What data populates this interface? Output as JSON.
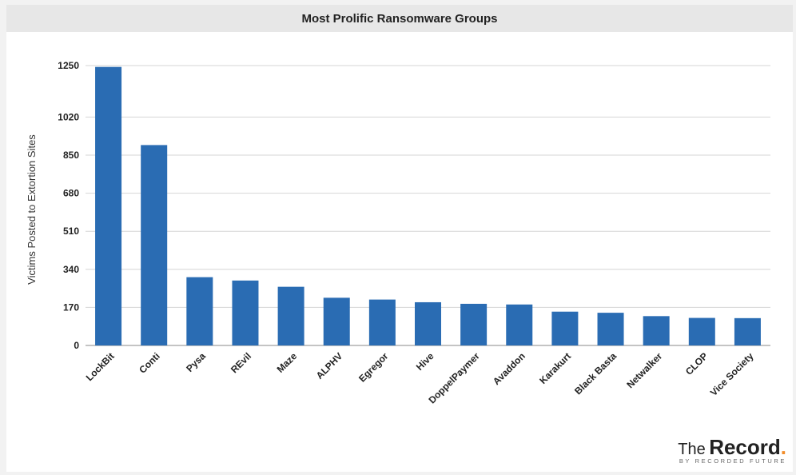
{
  "chart_data": {
    "type": "bar",
    "title": "Most Prolific Ransomware Groups",
    "xlabel": "",
    "ylabel": "Victims Posted to Extortion Sites",
    "categories": [
      "LockBit",
      "Conti",
      "Pysa",
      "REvil",
      "Maze",
      "ALPHV",
      "Egregor",
      "Hive",
      "DoppelPaymer",
      "Avaddon",
      "Karakurt",
      "Black Basta",
      "Netwalker",
      "CLOP",
      "Vice Society"
    ],
    "values": [
      1244,
      895,
      305,
      290,
      262,
      213,
      205,
      193,
      186,
      183,
      151,
      146,
      131,
      123,
      122
    ],
    "yticks": [
      0,
      170,
      340,
      510,
      680,
      850,
      1020,
      1250
    ],
    "ylim": [
      0,
      1250
    ],
    "grid": true,
    "bar_color": "#2a6cb3"
  },
  "logo": {
    "the": "The",
    "record": "Record",
    "dot": ".",
    "byline": "BY RECORDED FUTURE",
    "dot_color": "#f28c28"
  }
}
